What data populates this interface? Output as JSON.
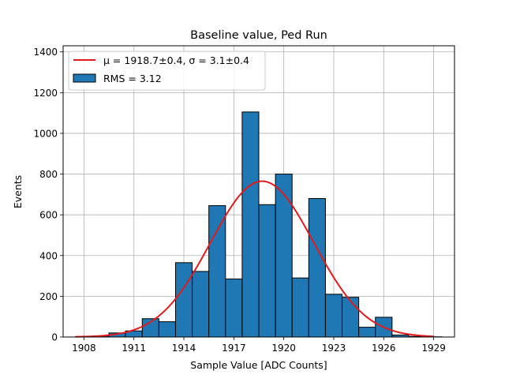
{
  "chart_data": {
    "type": "bar",
    "title": "Baseline value, Ped Run",
    "xlabel": "Sample Value [ADC Counts]",
    "ylabel": "Events",
    "xlim": [
      1906.75,
      1930.25
    ],
    "ylim": [
      0,
      1430
    ],
    "xticks": [
      1908,
      1911,
      1914,
      1917,
      1920,
      1923,
      1926,
      1929
    ],
    "yticks": [
      0,
      200,
      400,
      600,
      800,
      1000,
      1200,
      1400
    ],
    "grid": true,
    "legend_position": "top-left",
    "bin_width": 1,
    "bins": [
      {
        "x": 1908,
        "value": 2
      },
      {
        "x": 1909,
        "value": 5
      },
      {
        "x": 1910,
        "value": 20
      },
      {
        "x": 1911,
        "value": 30
      },
      {
        "x": 1912,
        "value": 90
      },
      {
        "x": 1913,
        "value": 75
      },
      {
        "x": 1914,
        "value": 365
      },
      {
        "x": 1915,
        "value": 322
      },
      {
        "x": 1916,
        "value": 645
      },
      {
        "x": 1917,
        "value": 285
      },
      {
        "x": 1918,
        "value": 1105
      },
      {
        "x": 1919,
        "value": 650
      },
      {
        "x": 1920,
        "value": 800
      },
      {
        "x": 1921,
        "value": 290
      },
      {
        "x": 1922,
        "value": 680
      },
      {
        "x": 1923,
        "value": 210
      },
      {
        "x": 1924,
        "value": 195
      },
      {
        "x": 1925,
        "value": 48
      },
      {
        "x": 1926,
        "value": 97
      },
      {
        "x": 1927,
        "value": 10
      },
      {
        "x": 1928,
        "value": 3
      },
      {
        "x": 1929,
        "value": 1
      }
    ],
    "fit": {
      "mu": 1918.7,
      "sigma": 3.1,
      "amplitude": 765,
      "x_range": [
        1907.5,
        1929
      ]
    },
    "series": [
      {
        "name": "μ = 1918.7±0.4, σ = 3.1±0.4",
        "kind": "line",
        "color": "#e31a1c"
      },
      {
        "name": "RMS = 3.12",
        "kind": "bar",
        "color": "#1f77b4"
      }
    ]
  }
}
